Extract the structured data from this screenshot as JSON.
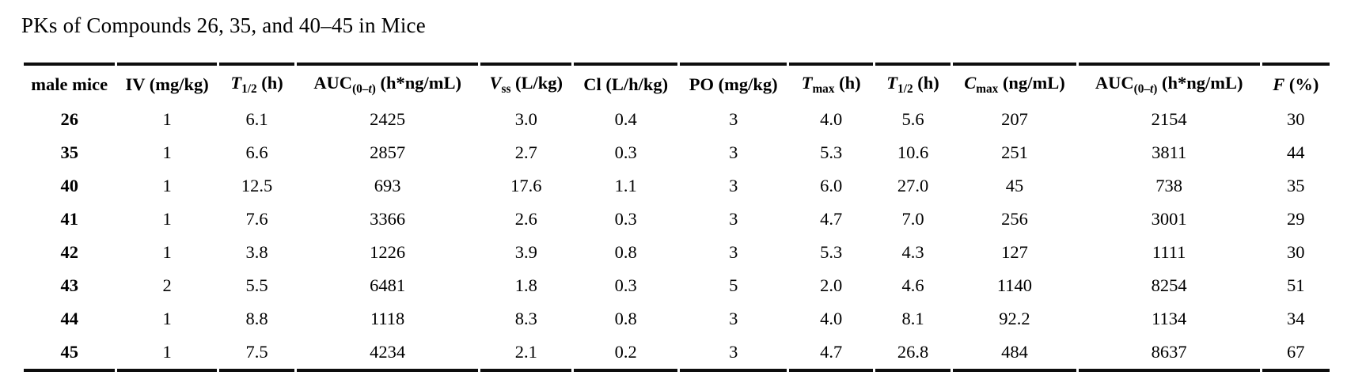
{
  "title": "PKs of Compounds 26, 35, and 40–45 in Mice",
  "table": {
    "headers": [
      {
        "text": "male mice"
      },
      {
        "text": "IV (mg/kg)"
      },
      {
        "sym": "T",
        "sub": "1/2",
        "unit": " (h)"
      },
      {
        "sym": "AUC",
        "sub_pre": "(0–",
        "sub_it": "t",
        "sub_post": ")",
        "unit": " (h*ng/mL)"
      },
      {
        "sym": "V",
        "sub": "ss",
        "unit": " (L/kg)"
      },
      {
        "text": "Cl (L/h/kg)"
      },
      {
        "text": "PO (mg/kg)"
      },
      {
        "sym": "T",
        "sub": "max",
        "unit": " (h)"
      },
      {
        "sym": "T",
        "sub": "1/2",
        "unit": " (h)"
      },
      {
        "sym": "C",
        "sub": "max",
        "unit": " (ng/mL)"
      },
      {
        "sym": "AUC",
        "sub_pre": "(0–",
        "sub_it": "t",
        "sub_post": ")",
        "unit": " (h*ng/mL)"
      },
      {
        "sym": "F",
        "unit": " (%)"
      }
    ],
    "rows": [
      [
        "26",
        "1",
        "6.1",
        "2425",
        "3.0",
        "0.4",
        "3",
        "4.0",
        "5.6",
        "207",
        "2154",
        "30"
      ],
      [
        "35",
        "1",
        "6.6",
        "2857",
        "2.7",
        "0.3",
        "3",
        "5.3",
        "10.6",
        "251",
        "3811",
        "44"
      ],
      [
        "40",
        "1",
        "12.5",
        "693",
        "17.6",
        "1.1",
        "3",
        "6.0",
        "27.0",
        "45",
        "738",
        "35"
      ],
      [
        "41",
        "1",
        "7.6",
        "3366",
        "2.6",
        "0.3",
        "3",
        "4.7",
        "7.0",
        "256",
        "3001",
        "29"
      ],
      [
        "42",
        "1",
        "3.8",
        "1226",
        "3.9",
        "0.8",
        "3",
        "5.3",
        "4.3",
        "127",
        "1111",
        "30"
      ],
      [
        "43",
        "2",
        "5.5",
        "6481",
        "1.8",
        "0.3",
        "5",
        "2.0",
        "4.6",
        "1140",
        "8254",
        "51"
      ],
      [
        "44",
        "1",
        "8.8",
        "1118",
        "8.3",
        "0.8",
        "3",
        "4.0",
        "8.1",
        "92.2",
        "1134",
        "34"
      ],
      [
        "45",
        "1",
        "7.5",
        "4234",
        "2.1",
        "0.2",
        "3",
        "4.7",
        "26.8",
        "484",
        "8637",
        "67"
      ]
    ]
  }
}
